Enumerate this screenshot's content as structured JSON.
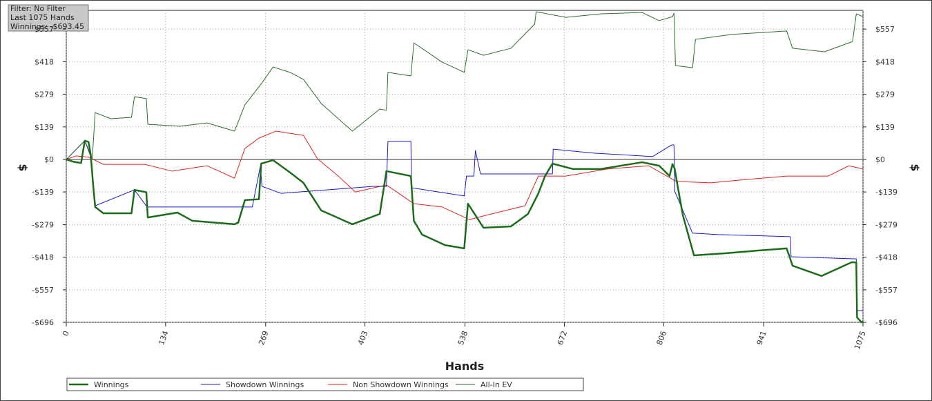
{
  "info": {
    "filter": "Filter: No Filter",
    "hands": "Last 1075 Hands",
    "winnings": "Winnings: -$693.45"
  },
  "chart_data": {
    "type": "line",
    "xlabel": "Hands",
    "ylabel": "$",
    "y2label": "$",
    "grid": true,
    "xlim": [
      0,
      1075
    ],
    "xticks": [
      0,
      134,
      269,
      403,
      538,
      672,
      806,
      941,
      1075
    ],
    "ylim": [
      -696,
      637
    ],
    "yticks": [
      {
        "value": -696,
        "label": "-$696"
      },
      {
        "value": -557,
        "label": "-$557"
      },
      {
        "value": -418,
        "label": "-$418"
      },
      {
        "value": -279,
        "label": "-$279"
      },
      {
        "value": -139,
        "label": "-$139"
      },
      {
        "value": 0,
        "label": "$0"
      },
      {
        "value": 139,
        "label": "$139"
      },
      {
        "value": 279,
        "label": "$279"
      },
      {
        "value": 418,
        "label": "$418"
      },
      {
        "value": 557,
        "label": "$557"
      }
    ],
    "series": [
      {
        "name": "Winnings",
        "color": "#1a6b1a",
        "width": 2.5,
        "x": [
          0,
          10,
          20,
          25,
          30,
          33,
          36,
          39,
          50,
          88,
          92,
          108,
          110,
          150,
          170,
          227,
          232,
          241,
          260,
          263,
          279,
          302,
          320,
          344,
          386,
          423,
          432,
          465,
          469,
          480,
          511,
          537,
          542,
          563,
          600,
          623,
          637,
          646,
          656,
          684,
          721,
          777,
          800,
          814,
          818,
          821,
          825,
          832,
          847,
          889,
          935,
          972,
          980,
          1019,
          1060,
          1066,
          1067,
          1073,
          1075
        ],
        "values": [
          0,
          -10,
          -15,
          80,
          75,
          20,
          -100,
          -203,
          -230,
          -230,
          -130,
          -140,
          -248,
          -227,
          -262,
          -277,
          -270,
          -174,
          -170,
          -18,
          -3,
          -56,
          -100,
          -218,
          -277,
          -233,
          -50,
          -71,
          -262,
          -321,
          -366,
          -380,
          -189,
          -292,
          -286,
          -233,
          -145,
          -71,
          -18,
          -41,
          -41,
          -12,
          -27,
          -71,
          -20,
          -40,
          -115,
          -239,
          -410,
          -401,
          -389,
          -380,
          -454,
          -498,
          -439,
          -440,
          -675,
          -696,
          -693
        ]
      },
      {
        "name": "Showdown Winnings",
        "color": "#1a1acc",
        "width": 1,
        "x": [
          0,
          25,
          33,
          36,
          39,
          92,
          109,
          251,
          262,
          264,
          290,
          414,
          432,
          434,
          465,
          466,
          502,
          537,
          540,
          550,
          552,
          559,
          656,
          657,
          712,
          791,
          817,
          820,
          821,
          845,
          880,
          977,
          978,
          1066,
          1067,
          1075
        ],
        "values": [
          0,
          80,
          20,
          -100,
          -198,
          -130,
          -203,
          -203,
          -27,
          -115,
          -145,
          -115,
          -115,
          77,
          77,
          -121,
          -139,
          -156,
          -71,
          -71,
          38,
          -62,
          -62,
          44,
          27,
          12,
          62,
          62,
          -136,
          -315,
          -321,
          -330,
          -416,
          -425,
          -646,
          -646
        ]
      },
      {
        "name": "Non Showdown Winnings",
        "color": "#dd2222",
        "width": 1,
        "x": [
          0,
          13,
          30,
          50,
          106,
          143,
          190,
          227,
          241,
          260,
          283,
          320,
          339,
          367,
          390,
          432,
          469,
          507,
          544,
          581,
          619,
          637,
          674,
          730,
          786,
          823,
          870,
          917,
          972,
          1028,
          1056,
          1075
        ],
        "values": [
          0,
          15,
          10,
          -21,
          -21,
          -50,
          -27,
          -80,
          47,
          91,
          121,
          103,
          3,
          -71,
          -139,
          -109,
          -189,
          -203,
          -257,
          -227,
          -198,
          -71,
          -71,
          -41,
          -27,
          -94,
          -100,
          -86,
          -71,
          -71,
          -27,
          -41
        ]
      },
      {
        "name": "All-In EV",
        "color": "#2e6b2e",
        "width": 1,
        "x": [
          0,
          25,
          32,
          35,
          39,
          60,
          88,
          92,
          108,
          110,
          153,
          190,
          227,
          241,
          264,
          279,
          302,
          320,
          344,
          386,
          423,
          432,
          434,
          465,
          469,
          507,
          537,
          542,
          563,
          600,
          632,
          634,
          674,
          721,
          777,
          800,
          818,
          820,
          822,
          845,
          849,
          898,
          972,
          980,
          1023,
          1061,
          1066,
          1075
        ],
        "values": [
          0,
          80,
          20,
          0,
          200,
          174,
          180,
          268,
          260,
          150,
          142,
          156,
          121,
          233,
          327,
          395,
          372,
          342,
          239,
          121,
          215,
          210,
          372,
          357,
          498,
          416,
          372,
          469,
          445,
          475,
          578,
          631,
          607,
          622,
          628,
          593,
          610,
          625,
          401,
          392,
          513,
          534,
          549,
          475,
          460,
          504,
          622,
          610
        ]
      }
    ]
  }
}
